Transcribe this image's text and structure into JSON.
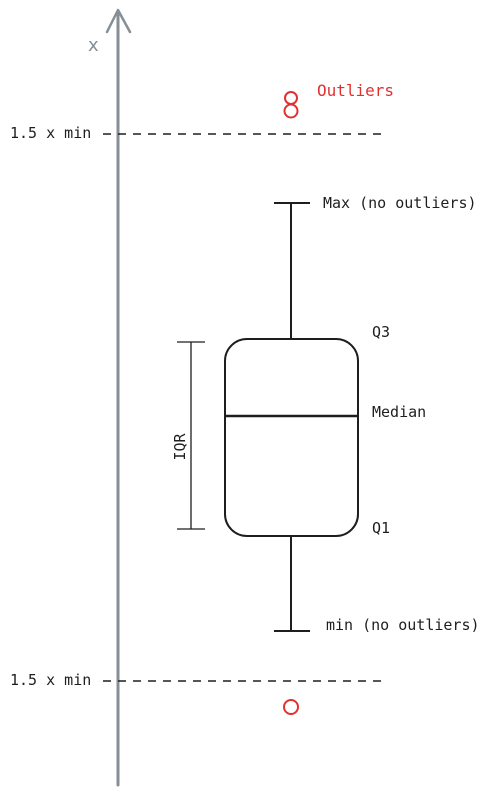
{
  "diagram": {
    "axis_label": "x",
    "outlier_label": "Outliers",
    "fence_upper_label": "1.5 x min",
    "fence_lower_label": "1.5 x min",
    "max_label": "Max (no outliers)",
    "q3_label": "Q3",
    "median_label": "Median",
    "q1_label": "Q1",
    "min_label": "min (no outliers)",
    "iqr_label": "IQR"
  },
  "colors": {
    "ink": "#1e1e1e",
    "axis": "#868e96",
    "outlier": "#e03131"
  }
}
